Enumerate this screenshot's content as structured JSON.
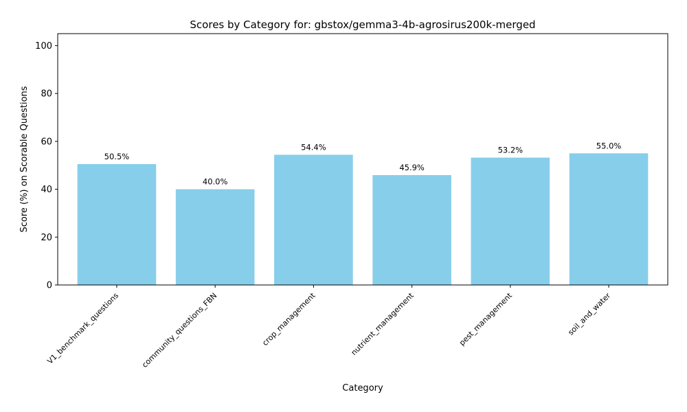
{
  "chart_data": {
    "type": "bar",
    "title": "Scores by Category for: gbstox/gemma3-4b-agrosirus200k-merged",
    "xlabel": "Category",
    "ylabel": "Score (%) on Scorable Questions",
    "categories": [
      "V1_benchmark_questions",
      "community_questions_FBN",
      "crop_management",
      "nutrient_management",
      "pest_management",
      "soil_and_water"
    ],
    "values": [
      50.5,
      40.0,
      54.4,
      45.9,
      53.2,
      55.0
    ],
    "data_labels": [
      "50.5%",
      "40.0%",
      "54.4%",
      "45.9%",
      "53.2%",
      "55.0%"
    ],
    "ylim": [
      0,
      105
    ],
    "yticks": [
      0,
      20,
      40,
      60,
      80,
      100
    ],
    "bar_color": "#87ceeb",
    "grid": false,
    "legend": "none"
  }
}
